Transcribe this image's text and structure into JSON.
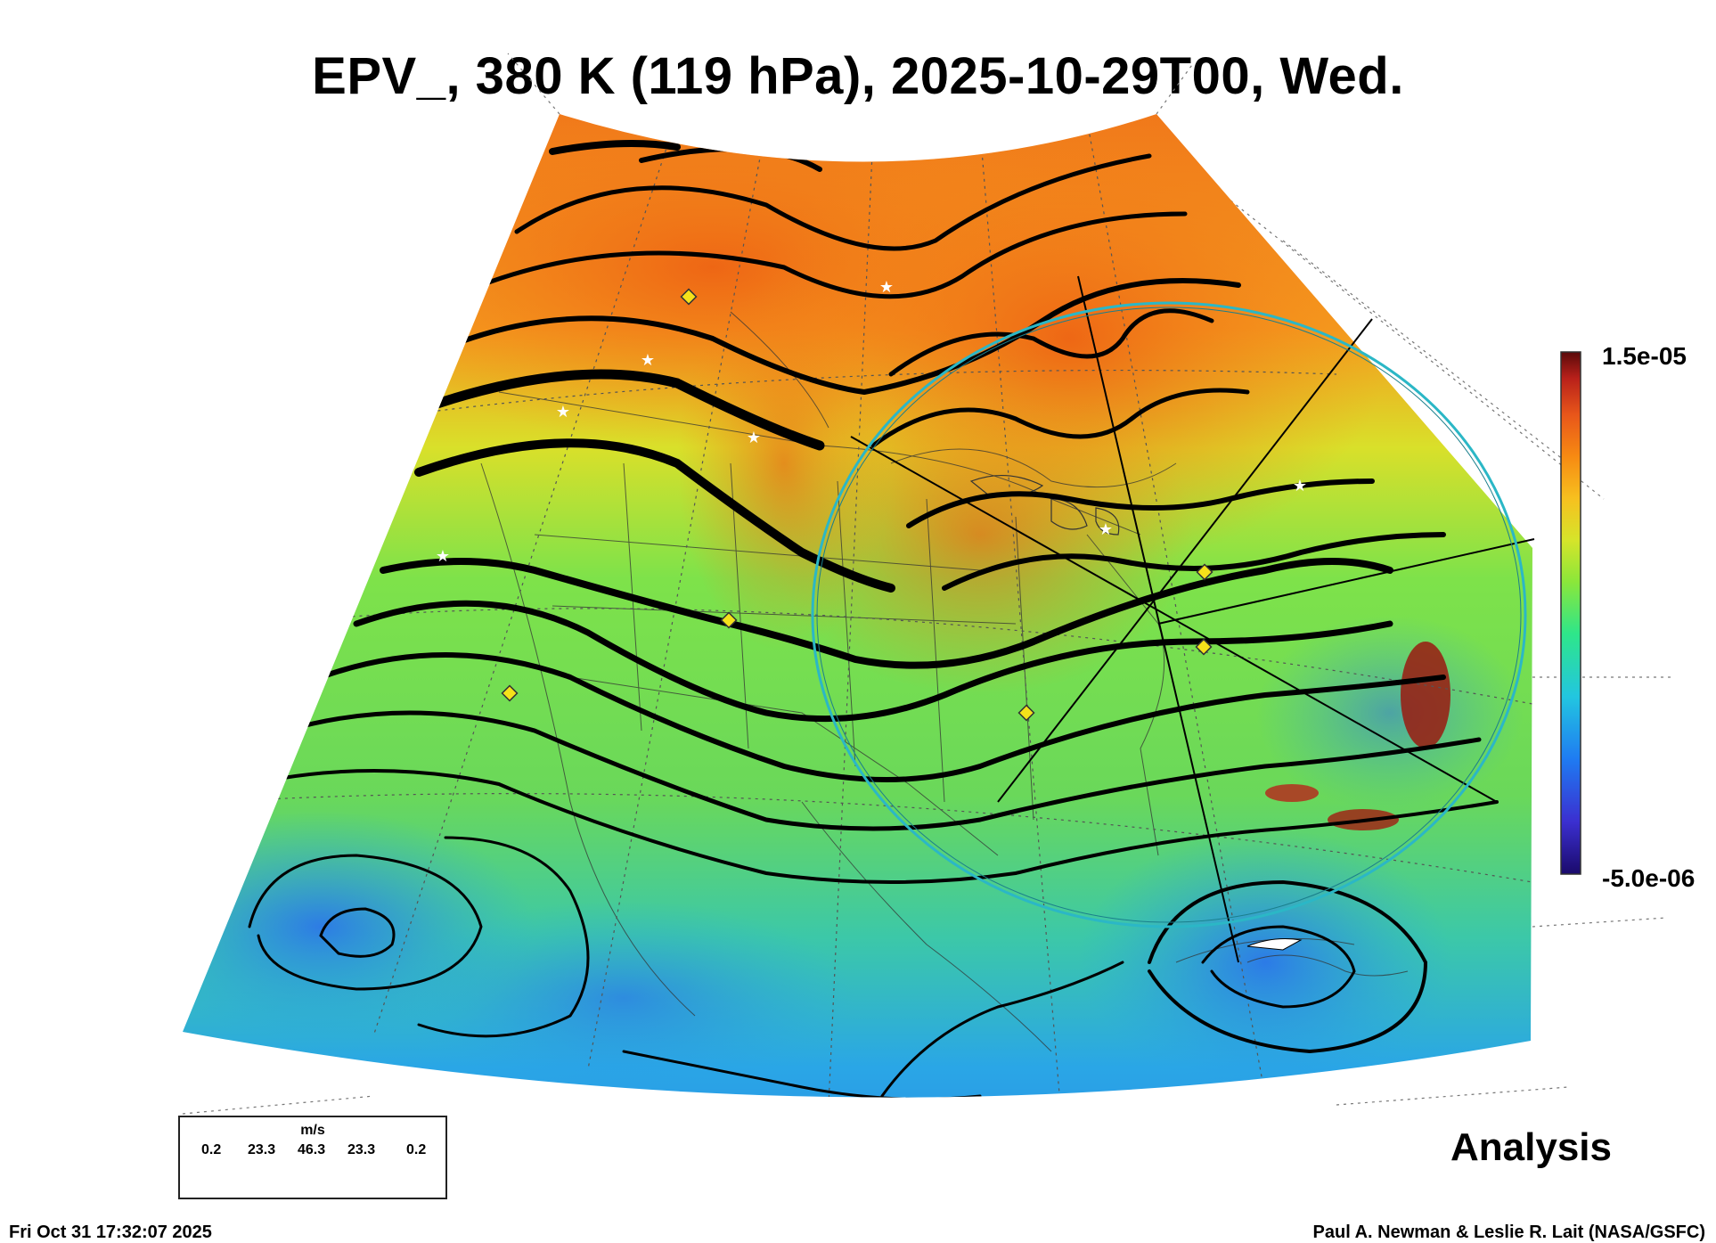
{
  "title": "EPV_, 380 K (119 hPa), 2025-10-29T00, Wed.",
  "colorbar": {
    "max_label": "1.5e-05",
    "min_label": "-5.0e-06",
    "colors": [
      "#1a0a6b",
      "#3b2fd0",
      "#1f7bf2",
      "#22c6e0",
      "#2ee68a",
      "#8be73a",
      "#d6e42a",
      "#f7c01f",
      "#f78a12",
      "#e8561a",
      "#b8201a",
      "#5a0a0a"
    ]
  },
  "wind_legend": {
    "units": "m/s",
    "values": [
      "0.2",
      "23.3",
      "46.3",
      "23.3",
      "0.2"
    ]
  },
  "analysis_label": "Analysis",
  "footer": {
    "timestamp": "Fri Oct 31 17:32:07 2025",
    "credit": "Paul A. Newman & Leslie R. Lait (NASA/GSFC)"
  },
  "map": {
    "ring_color": "#2bb7c6",
    "marker_color": "#f5e11a"
  }
}
